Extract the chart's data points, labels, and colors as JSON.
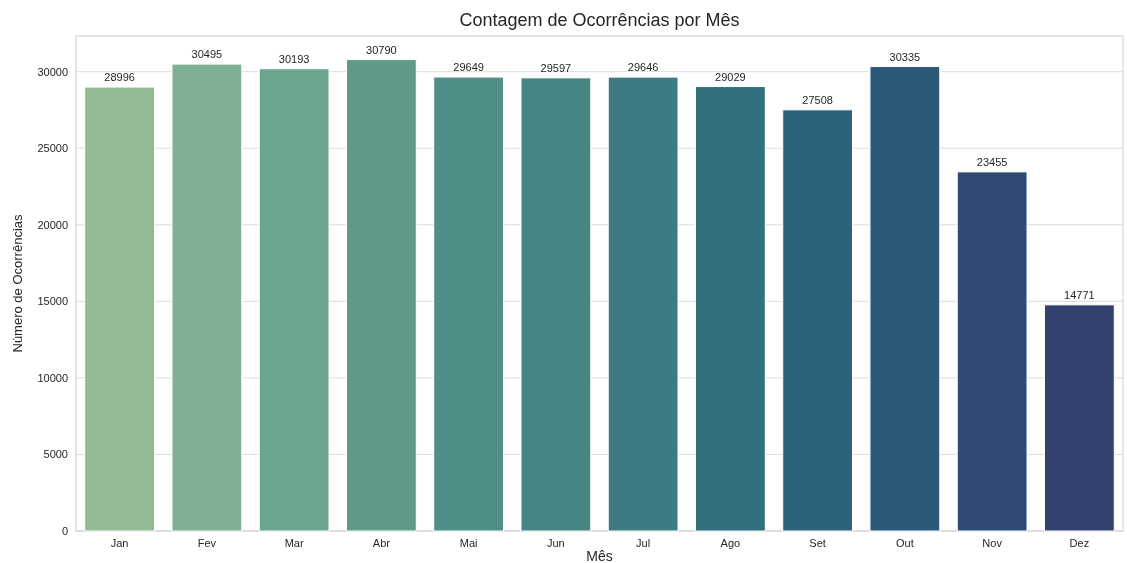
{
  "chart_data": {
    "type": "bar",
    "title": "Contagem de Ocorrências por Mês",
    "xlabel": "Mês",
    "ylabel": "Número de Ocorrências",
    "categories": [
      "Jan",
      "Fev",
      "Mar",
      "Abr",
      "Mai",
      "Jun",
      "Jul",
      "Ago",
      "Set",
      "Out",
      "Nov",
      "Dez"
    ],
    "values": [
      28996,
      30495,
      30193,
      30790,
      29649,
      29597,
      29646,
      29029,
      27508,
      30335,
      23455,
      14771
    ],
    "colors": [
      "#93bb93",
      "#80b092",
      "#6ca58e",
      "#5e998a",
      "#4f8f87",
      "#468584",
      "#3d7a81",
      "#33707e",
      "#2c637b",
      "#2b5778",
      "#2f4b74",
      "#34406d"
    ],
    "ylim": [
      0,
      32330
    ],
    "yticks": [
      0,
      5000,
      10000,
      15000,
      20000,
      25000,
      30000
    ],
    "grid": "y",
    "data_labels": true
  }
}
